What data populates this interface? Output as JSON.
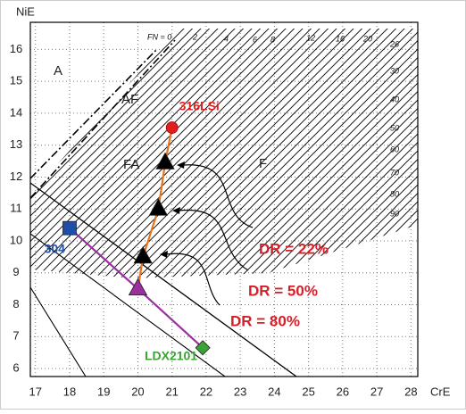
{
  "chart_data": {
    "type": "scatter",
    "x_label": "CrE",
    "y_label": "NiE",
    "xlim": [
      16.85,
      28.2
    ],
    "ylim": [
      5.75,
      16.85
    ],
    "xticks": [
      17,
      18,
      19,
      20,
      21,
      22,
      23,
      24,
      25,
      26,
      27,
      28
    ],
    "yticks": [
      6,
      7,
      8,
      9,
      10,
      11,
      12,
      13,
      14,
      15,
      16
    ],
    "grid": true,
    "series": [
      {
        "name": "316LSi",
        "color": "#e02020",
        "marker": "circle",
        "x": [
          21
        ],
        "y": [
          13.55
        ]
      },
      {
        "color": "#000000",
        "marker": "triangle",
        "x": [
          20.8,
          20.6,
          20.15
        ],
        "y": [
          12.45,
          11.0,
          9.5
        ]
      },
      {
        "color": "#9b2fa0",
        "marker": "triangle",
        "x": [
          20
        ],
        "y": [
          8.5
        ]
      },
      {
        "name": "304",
        "color": "#1f4ea8",
        "marker": "square",
        "x": [
          18
        ],
        "y": [
          10.4
        ]
      },
      {
        "name": "LDX2101",
        "color": "#3aa335",
        "marker": "diamond",
        "x": [
          21.9
        ],
        "y": [
          6.65
        ]
      }
    ],
    "regions": [
      "A",
      "AF",
      "FA",
      "F"
    ],
    "fn_labels": [
      "FN = 0",
      "2",
      "4",
      "6",
      "8",
      "12",
      "16",
      "20",
      "26",
      "30",
      "40",
      "50",
      "60",
      "70",
      "80",
      "90"
    ],
    "annotations": [
      "DR = 22%",
      "DR = 50%",
      "DR = 80%"
    ]
  }
}
